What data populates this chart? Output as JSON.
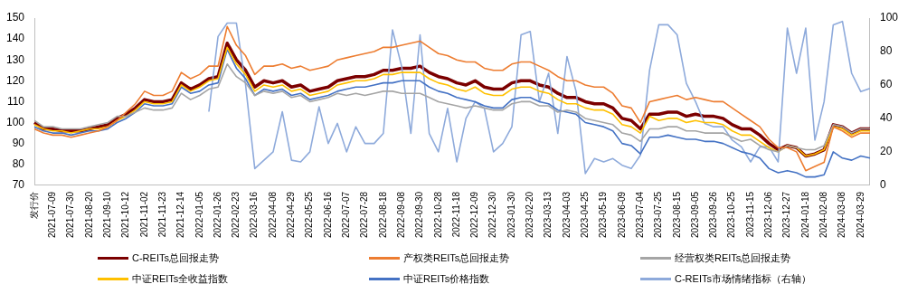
{
  "chart_data": {
    "type": "line",
    "categories": [
      "发行价",
      null,
      "2021-07-09",
      null,
      "2021-07-30",
      null,
      "2021-08-20",
      null,
      "2021-09-10",
      null,
      "2021-10-12",
      null,
      "2021-11-02",
      null,
      "2021-11-23",
      null,
      "2021-12-14",
      null,
      "2022-01-05",
      null,
      "2022-01-26",
      null,
      "2022-02-23",
      null,
      "2022-03-16",
      null,
      "2022-04-08",
      null,
      "2022-04-29",
      null,
      "2022-05-25",
      null,
      "2022-06-16",
      null,
      "2022-07-07",
      null,
      "2022-07-28",
      null,
      "2022-08-18",
      null,
      "2022-09-08",
      null,
      "2022-09-30",
      null,
      "2022-10-28",
      null,
      "2022-11-18",
      null,
      "2022-12-09",
      null,
      "2022-12-30",
      null,
      "2023-01-30",
      null,
      "2023-02-20",
      null,
      "2023-03-13",
      null,
      "2023-04-03",
      null,
      "2023-04-25",
      null,
      "2023-05-19",
      null,
      "2023-06-09",
      null,
      "2023-07-04",
      null,
      "2023-07-25",
      null,
      "2023-08-15",
      null,
      "2023-09-05",
      null,
      "2023-09-26",
      null,
      "2023-10-25",
      null,
      "2023-11-15",
      null,
      "2023-12-06",
      null,
      "2023-12-27",
      null,
      "2024-01-18",
      null,
      "2024-02-08",
      null,
      "2024-03-08",
      null,
      "2024-03-29",
      null
    ],
    "series": [
      {
        "name": "C-REITs总回报走势",
        "color": "#7b0000",
        "values": [
          100,
          97,
          97,
          96,
          96,
          96,
          97,
          98,
          99,
          102,
          104,
          107,
          111,
          110,
          110,
          111,
          119,
          116,
          118,
          121,
          122,
          138,
          130,
          125,
          117,
          120,
          119,
          120,
          117,
          118,
          115,
          116,
          117,
          120,
          121,
          122,
          122,
          123,
          125,
          125,
          126,
          126,
          127,
          124,
          122,
          121,
          119,
          118,
          120,
          117,
          116,
          116,
          119,
          120,
          120,
          118,
          117,
          114,
          112,
          112,
          110,
          109,
          109,
          107,
          102,
          101,
          97,
          104,
          104,
          105,
          105,
          103,
          104,
          103,
          103,
          102,
          99,
          97,
          97,
          94,
          90,
          87,
          89,
          88,
          84,
          85,
          87,
          99,
          98,
          95,
          97,
          97
        ]
      },
      {
        "name": "产权类REITs总回报走势",
        "color": "#ed7d31",
        "values": [
          97,
          95,
          94,
          94,
          93,
          94,
          95,
          96,
          98,
          101,
          105,
          109,
          115,
          113,
          113,
          115,
          124,
          121,
          123,
          127,
          127,
          146,
          137,
          132,
          123,
          127,
          127,
          128,
          126,
          127,
          125,
          126,
          127,
          130,
          131,
          132,
          133,
          134,
          136,
          136,
          137,
          138,
          139,
          136,
          133,
          132,
          130,
          129,
          129,
          126,
          125,
          125,
          128,
          129,
          129,
          127,
          125,
          122,
          120,
          120,
          118,
          117,
          117,
          114,
          108,
          107,
          100,
          110,
          111,
          112,
          113,
          111,
          112,
          111,
          110,
          110,
          107,
          104,
          101,
          98,
          92,
          88,
          88,
          86,
          77,
          79,
          81,
          98,
          96,
          93,
          95,
          95
        ]
      },
      {
        "name": "经营权类REITs总回报走势",
        "color": "#a5a5a5",
        "values": [
          101,
          98,
          98,
          97,
          97,
          97,
          98,
          99,
          100,
          103,
          103,
          105,
          107,
          106,
          106,
          107,
          114,
          111,
          113,
          116,
          117,
          128,
          122,
          119,
          113,
          115,
          114,
          115,
          112,
          113,
          110,
          111,
          112,
          114,
          113,
          114,
          113,
          114,
          115,
          115,
          114,
          114,
          114,
          112,
          110,
          109,
          108,
          107,
          108,
          107,
          106,
          106,
          109,
          110,
          110,
          108,
          108,
          105,
          106,
          105,
          102,
          101,
          100,
          99,
          95,
          94,
          91,
          97,
          97,
          98,
          98,
          96,
          96,
          95,
          95,
          95,
          93,
          91,
          92,
          89,
          87,
          86,
          89,
          88,
          87,
          87,
          89,
          99,
          98,
          95,
          97,
          97
        ]
      },
      {
        "name": "中证REITs全收益指数",
        "color": "#ffc000",
        "values": [
          99,
          97,
          96,
          96,
          95,
          96,
          97,
          97,
          98,
          101,
          103,
          106,
          110,
          109,
          109,
          110,
          118,
          115,
          117,
          120,
          121,
          136,
          128,
          123,
          115,
          118,
          117,
          118,
          115,
          116,
          113,
          114,
          115,
          118,
          119,
          120,
          120,
          121,
          123,
          123,
          124,
          124,
          124,
          121,
          119,
          118,
          116,
          115,
          117,
          114,
          113,
          113,
          116,
          117,
          117,
          115,
          114,
          111,
          109,
          109,
          107,
          106,
          106,
          104,
          99,
          98,
          95,
          103,
          101,
          102,
          102,
          100,
          101,
          100,
          100,
          99,
          96,
          94,
          94,
          91,
          88,
          86,
          89,
          88,
          84,
          85,
          87,
          98,
          97,
          94,
          96,
          96
        ]
      },
      {
        "name": "中证REITs价格指数",
        "color": "#4472c4",
        "values": [
          98,
          96,
          95,
          95,
          94,
          95,
          96,
          96,
          97,
          100,
          102,
          105,
          109,
          108,
          108,
          109,
          117,
          114,
          115,
          118,
          119,
          135,
          126,
          121,
          113,
          116,
          115,
          116,
          113,
          114,
          111,
          112,
          113,
          115,
          116,
          117,
          117,
          118,
          119,
          119,
          120,
          120,
          120,
          117,
          115,
          114,
          112,
          111,
          110,
          108,
          107,
          107,
          111,
          112,
          112,
          110,
          109,
          106,
          105,
          104,
          100,
          99,
          98,
          96,
          90,
          89,
          85,
          93,
          93,
          94,
          93,
          92,
          92,
          91,
          91,
          90,
          88,
          86,
          85,
          83,
          78,
          76,
          77,
          76,
          74,
          74,
          75,
          86,
          83,
          82,
          84,
          83
        ]
      },
      {
        "name": "C-REITs市场情绪指标（右轴）",
        "color": "#8eaadb",
        "axis": "y2",
        "values": [
          null,
          null,
          null,
          null,
          null,
          null,
          null,
          null,
          null,
          null,
          null,
          null,
          null,
          null,
          null,
          null,
          null,
          null,
          null,
          44,
          89,
          97,
          97,
          60,
          10,
          15,
          20,
          44,
          15,
          14,
          20,
          47,
          25,
          37,
          20,
          35,
          25,
          25,
          31,
          93,
          71,
          31,
          90,
          31,
          20,
          46,
          14,
          40,
          50,
          46,
          20,
          25,
          35,
          90,
          92,
          50,
          67,
          31,
          77,
          56,
          7,
          16,
          14,
          16,
          12,
          10,
          18,
          69,
          96,
          96,
          90,
          61,
          50,
          37,
          35,
          35,
          27,
          23,
          14,
          23,
          23,
          14,
          94,
          67,
          94,
          27,
          50,
          96,
          98,
          67,
          56,
          58
        ]
      }
    ],
    "ylim": [
      70,
      150
    ],
    "yticks": [
      70,
      80,
      90,
      100,
      110,
      120,
      130,
      140,
      150
    ],
    "y2lim": [
      0,
      100
    ],
    "y2ticks": [
      0,
      20,
      40,
      60,
      80,
      100
    ],
    "legend": "bottom",
    "marker": "none",
    "line_style": "solid"
  }
}
